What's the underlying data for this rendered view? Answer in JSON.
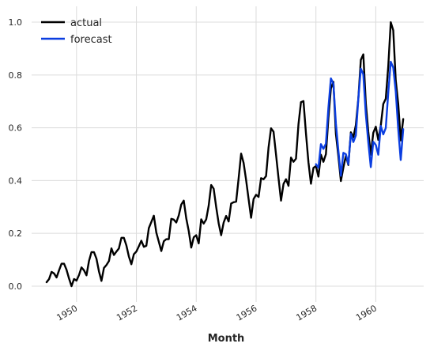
{
  "chart_data": {
    "type": "line",
    "title": "",
    "xlabel": "Month",
    "ylabel": "",
    "xlim": [
      1948.5,
      1961.6
    ],
    "ylim": [
      -0.06,
      1.06
    ],
    "x_ticks": [
      1950,
      1952,
      1954,
      1956,
      1958,
      1960
    ],
    "x_tick_labels": [
      "1950",
      "1952",
      "1954",
      "1956",
      "1958",
      "1960"
    ],
    "y_ticks": [
      0.0,
      0.2,
      0.4,
      0.6,
      0.8,
      1.0
    ],
    "y_tick_labels": [
      "0.0",
      "0.2",
      "0.4",
      "0.6",
      "0.8",
      "1.0"
    ],
    "grid": true,
    "legend_position": "top-left",
    "series": [
      {
        "name": "actual",
        "color": "#000000",
        "start": 1949.0,
        "step": 0.08333333,
        "values": [
          0.015,
          0.027,
          0.054,
          0.048,
          0.033,
          0.06,
          0.085,
          0.085,
          0.062,
          0.029,
          0.0,
          0.027,
          0.021,
          0.042,
          0.071,
          0.06,
          0.041,
          0.095,
          0.129,
          0.129,
          0.104,
          0.056,
          0.02,
          0.069,
          0.08,
          0.095,
          0.143,
          0.118,
          0.131,
          0.143,
          0.183,
          0.183,
          0.154,
          0.112,
          0.083,
          0.121,
          0.131,
          0.151,
          0.172,
          0.149,
          0.153,
          0.22,
          0.243,
          0.267,
          0.203,
          0.168,
          0.133,
          0.17,
          0.178,
          0.178,
          0.255,
          0.252,
          0.241,
          0.268,
          0.309,
          0.324,
          0.257,
          0.209,
          0.146,
          0.185,
          0.193,
          0.162,
          0.253,
          0.237,
          0.253,
          0.305,
          0.383,
          0.369,
          0.3,
          0.238,
          0.193,
          0.241,
          0.266,
          0.245,
          0.313,
          0.318,
          0.32,
          0.408,
          0.502,
          0.467,
          0.402,
          0.33,
          0.259,
          0.33,
          0.346,
          0.338,
          0.409,
          0.405,
          0.417,
          0.525,
          0.598,
          0.585,
          0.498,
          0.409,
          0.324,
          0.387,
          0.405,
          0.38,
          0.487,
          0.471,
          0.483,
          0.613,
          0.697,
          0.701,
          0.579,
          0.469,
          0.388,
          0.448,
          0.455,
          0.415,
          0.498,
          0.471,
          0.5,
          0.637,
          0.749,
          0.774,
          0.577,
          0.492,
          0.398,
          0.449,
          0.494,
          0.459,
          0.583,
          0.564,
          0.61,
          0.71,
          0.857,
          0.878,
          0.693,
          0.584,
          0.498,
          0.581,
          0.604,
          0.554,
          0.608,
          0.69,
          0.71,
          0.833,
          1.0,
          0.969,
          0.78,
          0.69,
          0.552,
          0.633
        ]
      },
      {
        "name": "forecast",
        "color": "#0b3ee0",
        "start": 1958.0,
        "step": 0.08333333,
        "values": [
          0.462,
          0.449,
          0.538,
          0.52,
          0.54,
          0.675,
          0.787,
          0.767,
          0.616,
          0.513,
          0.418,
          0.505,
          0.5,
          0.462,
          0.577,
          0.546,
          0.571,
          0.71,
          0.824,
          0.802,
          0.651,
          0.545,
          0.451,
          0.547,
          0.535,
          0.498,
          0.607,
          0.575,
          0.599,
          0.733,
          0.85,
          0.828,
          0.738,
          0.595,
          0.478,
          0.595
        ]
      }
    ]
  }
}
